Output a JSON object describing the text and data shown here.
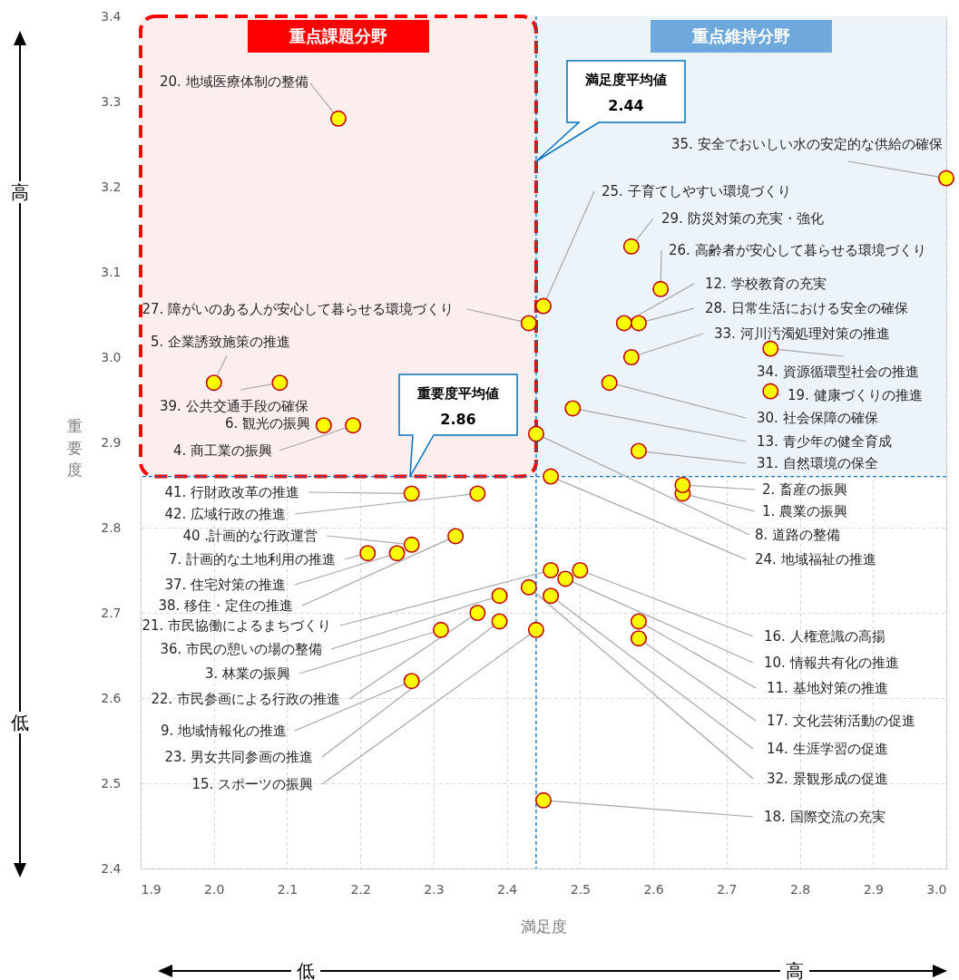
{
  "chart_data": {
    "type": "scatter",
    "xlabel": "満足度",
    "ylabel": "重要度",
    "xlim": [
      1.9,
      3.0
    ],
    "ylim": [
      2.4,
      3.4
    ],
    "xticks": [
      1.9,
      {
        "value": 2,
        "label": "2.0"
      },
      2.1,
      2.2,
      2.3,
      2.4,
      2.5,
      2.6,
      2.7,
      2.8,
      2.9,
      {
        "value": 3,
        "label": "3.0"
      }
    ],
    "yticks": [
      2.4,
      2.5,
      2.6,
      2.7,
      2.8,
      2.9,
      {
        "value": 3,
        "label": "3.0"
      },
      3.1,
      3.2,
      3.3,
      3.4
    ],
    "grid": true,
    "marker": "circle",
    "series": [
      {
        "color": "#ffff00",
        "x": [
          2.64,
          2.64,
          2.31,
          2.19,
          2.0,
          2.15,
          2.21,
          2.44,
          2.27,
          2.48,
          2.58,
          2.56,
          2.49,
          2.46,
          2.44,
          2.5,
          2.58,
          2.45,
          2.76,
          2.17,
          2.46,
          2.36,
          2.39,
          2.46,
          2.45,
          2.61,
          2.43,
          2.58,
          2.57,
          2.54,
          2.58,
          2.43,
          2.57,
          2.76,
          3.0,
          2.39,
          2.25,
          2.33,
          2.09,
          2.27,
          2.27,
          2.36
        ],
        "values": [
          2.84,
          2.85,
          2.68,
          2.92,
          2.97,
          2.92,
          2.77,
          2.91,
          2.62,
          2.74,
          2.69,
          3.04,
          2.94,
          2.72,
          2.68,
          2.75,
          2.67,
          2.48,
          2.96,
          3.28,
          2.75,
          2.7,
          2.69,
          2.86,
          3.06,
          3.08,
          3.04,
          3.04,
          3.13,
          2.97,
          2.89,
          2.73,
          3.0,
          3.01,
          3.21,
          2.72,
          2.77,
          2.79,
          2.97,
          2.78,
          2.84,
          2.84
        ]
      }
    ],
    "ref_lines": [
      {
        "axis": "x",
        "value": 2.44,
        "color": "#0070c0",
        "line_style": "dashed"
      },
      {
        "axis": "y",
        "value": 2.86,
        "color": "#0070c0",
        "line_style": "dashed"
      }
    ],
    "bands": [
      {
        "axis": "x",
        "from": 1.9,
        "to": 2.44,
        "label": "重点課題分野",
        "color": "#fdeeee"
      },
      {
        "axis": "x",
        "from": 2.44,
        "to": 3.0,
        "label": "重点維持分野",
        "color": "#edf4f9"
      }
    ],
    "annotations": [
      {
        "text": "1. 農業の振興",
        "x": 2.64,
        "y": 2.84
      },
      {
        "text": "2. 畜産の振興",
        "x": 2.64,
        "y": 2.85
      },
      {
        "text": "3. 林業の振興",
        "x": 2.31,
        "y": 2.68
      },
      {
        "text": "4. 商工業の振興",
        "x": 2.19,
        "y": 2.92
      },
      {
        "text": "5. 企業誘致施策の推進",
        "x": 2.0,
        "y": 2.97
      },
      {
        "text": "6. 観光の振興",
        "x": 2.15,
        "y": 2.92
      },
      {
        "text": "7. 計画的な土地利用の推進",
        "x": 2.21,
        "y": 2.77
      },
      {
        "text": "8. 道路の整備",
        "x": 2.44,
        "y": 2.91
      },
      {
        "text": "9. 地域情報化の推進",
        "x": 2.27,
        "y": 2.62
      },
      {
        "text": "10. 情報共有化の推進",
        "x": 2.48,
        "y": 2.74
      },
      {
        "text": "11. 基地対策の推進",
        "x": 2.58,
        "y": 2.69
      },
      {
        "text": "12. 学校教育の充実",
        "x": 2.56,
        "y": 3.04
      },
      {
        "text": "13. 青少年の健全育成",
        "x": 2.49,
        "y": 2.94
      },
      {
        "text": "14. 生涯学習の促進",
        "x": 2.46,
        "y": 2.72
      },
      {
        "text": "15. スポーツの振興",
        "x": 2.44,
        "y": 2.68
      },
      {
        "text": "16. 人権意識の高揚",
        "x": 2.5,
        "y": 2.75
      },
      {
        "text": "17. 文化芸術活動の促進",
        "x": 2.58,
        "y": 2.67
      },
      {
        "text": "18. 国際交流の充実",
        "x": 2.45,
        "y": 2.48
      },
      {
        "text": "19. 健康づくりの推進",
        "x": 2.76,
        "y": 2.96
      },
      {
        "text": "20. 地域医療体制の整備",
        "x": 2.17,
        "y": 3.28
      },
      {
        "text": "21. 市民協働によるまちづくり",
        "x": 2.46,
        "y": 2.75
      },
      {
        "text": "22. 市民参画による行政の推進",
        "x": 2.36,
        "y": 2.7
      },
      {
        "text": "23. 男女共同参画の推進",
        "x": 2.39,
        "y": 2.69
      },
      {
        "text": "24. 地域福祉の推進",
        "x": 2.46,
        "y": 2.86
      },
      {
        "text": "25. 子育てしやすい環境づくり",
        "x": 2.45,
        "y": 3.06
      },
      {
        "text": "26. 高齢者が安心して暮らせる環境づくり",
        "x": 2.61,
        "y": 3.08
      },
      {
        "text": "27. 障がいのある人が安心して暮らせる環境づくり",
        "x": 2.43,
        "y": 3.04
      },
      {
        "text": "28. 日常生活における安全の確保",
        "x": 2.58,
        "y": 3.04
      },
      {
        "text": "29. 防災対策の充実・強化",
        "x": 2.57,
        "y": 3.13
      },
      {
        "text": "30. 社会保障の確保",
        "x": 2.54,
        "y": 2.97
      },
      {
        "text": "31. 自然環境の保全",
        "x": 2.58,
        "y": 2.89
      },
      {
        "text": "32. 景観形成の促進",
        "x": 2.43,
        "y": 2.73
      },
      {
        "text": "33. 河川汚濁処理対策の推進",
        "x": 2.57,
        "y": 3.0
      },
      {
        "text": "34. 資源循環型社会の推進",
        "x": 2.76,
        "y": 3.01
      },
      {
        "text": "35. 安全でおいしい水の安定的な供給の確保",
        "x": 3.0,
        "y": 3.21
      },
      {
        "text": "36. 市民の憩いの場の整備",
        "x": 2.39,
        "y": 2.72
      },
      {
        "text": "37. 住宅対策の推進",
        "x": 2.25,
        "y": 2.77
      },
      {
        "text": "38. 移住・定住の推進",
        "x": 2.33,
        "y": 2.79
      },
      {
        "text": "39. 公共交通手段の確保",
        "x": 2.09,
        "y": 2.97
      },
      {
        "text": "40 .計画的な行政運営",
        "x": 2.27,
        "y": 2.78
      },
      {
        "text": "41. 行財政改革の推進",
        "x": 2.27,
        "y": 2.84
      },
      {
        "text": "42. 広域行政の推進",
        "x": 2.36,
        "y": 2.84
      },
      "満足度平均値",
      "2.44",
      "重要度平均値",
      "2.86",
      "高",
      "低",
      "低",
      "高"
    ]
  }
}
